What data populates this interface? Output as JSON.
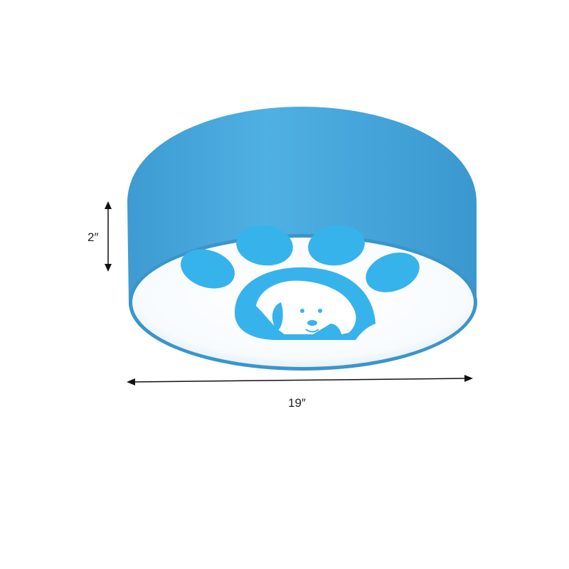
{
  "product": {
    "description_icons": [
      "paw-print-icon",
      "dog-face-icon"
    ],
    "colors": {
      "body": "#4aa8dd",
      "body_dark": "#3b95c9",
      "face": "#ffffff",
      "print": "#37b3ec"
    }
  },
  "dimensions": {
    "height_label": "2″",
    "width_label": "19″"
  }
}
